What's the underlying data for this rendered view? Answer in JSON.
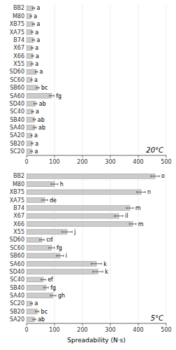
{
  "chart_data": [
    {
      "type": "bar",
      "orientation": "horizontal",
      "title": "20°C",
      "categories": [
        "BB2",
        "M80",
        "XB75",
        "XA75",
        "B74",
        "X67",
        "X66",
        "X55",
        "SD60",
        "SC60",
        "SB60",
        "SA60",
        "SD40",
        "SC40",
        "SB40",
        "SA40",
        "SA20",
        "SB20",
        "SC20"
      ],
      "values": [
        25,
        16,
        25,
        20,
        25,
        20,
        22,
        20,
        35,
        18,
        40,
        90,
        32,
        22,
        28,
        30,
        18,
        20,
        18
      ],
      "errors": [
        4,
        2,
        4,
        3,
        4,
        3,
        3,
        3,
        4,
        2,
        5,
        8,
        5,
        3,
        4,
        5,
        2,
        3,
        3
      ],
      "annotations": [
        "a",
        "a",
        "a",
        "a",
        "a",
        "a",
        "a",
        "a",
        "a",
        "a",
        "bc",
        "fg",
        "ab",
        "a",
        "ab",
        "ab",
        "a",
        "a",
        "a"
      ],
      "color": "#cccccc",
      "xlim": [
        0,
        500
      ],
      "xticks": [
        0,
        100,
        200,
        300,
        400,
        500
      ]
    },
    {
      "type": "bar",
      "orientation": "horizontal",
      "title": "5°C",
      "categories": [
        "BB2",
        "M80",
        "XB75",
        "XA75",
        "B74",
        "X67",
        "X66",
        "X55",
        "SD60",
        "SC60",
        "SB60",
        "SA60",
        "SD40",
        "SC40",
        "SB40",
        "SA40",
        "SC20",
        "SB20",
        "SA20"
      ],
      "values": [
        460,
        100,
        410,
        65,
        370,
        330,
        380,
        145,
        55,
        90,
        120,
        250,
        255,
        60,
        70,
        95,
        18,
        38,
        28
      ],
      "errors": [
        15,
        12,
        15,
        10,
        12,
        15,
        12,
        18,
        8,
        10,
        12,
        18,
        18,
        8,
        8,
        10,
        3,
        6,
        5
      ],
      "annotations": [
        "o",
        "h",
        "n",
        "de",
        "m",
        "il",
        "m",
        "j",
        "cd",
        "fg",
        "i",
        "k",
        "k",
        "ef",
        "fg",
        "gh",
        "a",
        "bc",
        "ab"
      ],
      "color": "#cccccc",
      "xlabel": "Spreadability (N·s)",
      "xlim": [
        0,
        500
      ],
      "xticks": [
        0,
        100,
        200,
        300,
        400,
        500
      ]
    }
  ]
}
